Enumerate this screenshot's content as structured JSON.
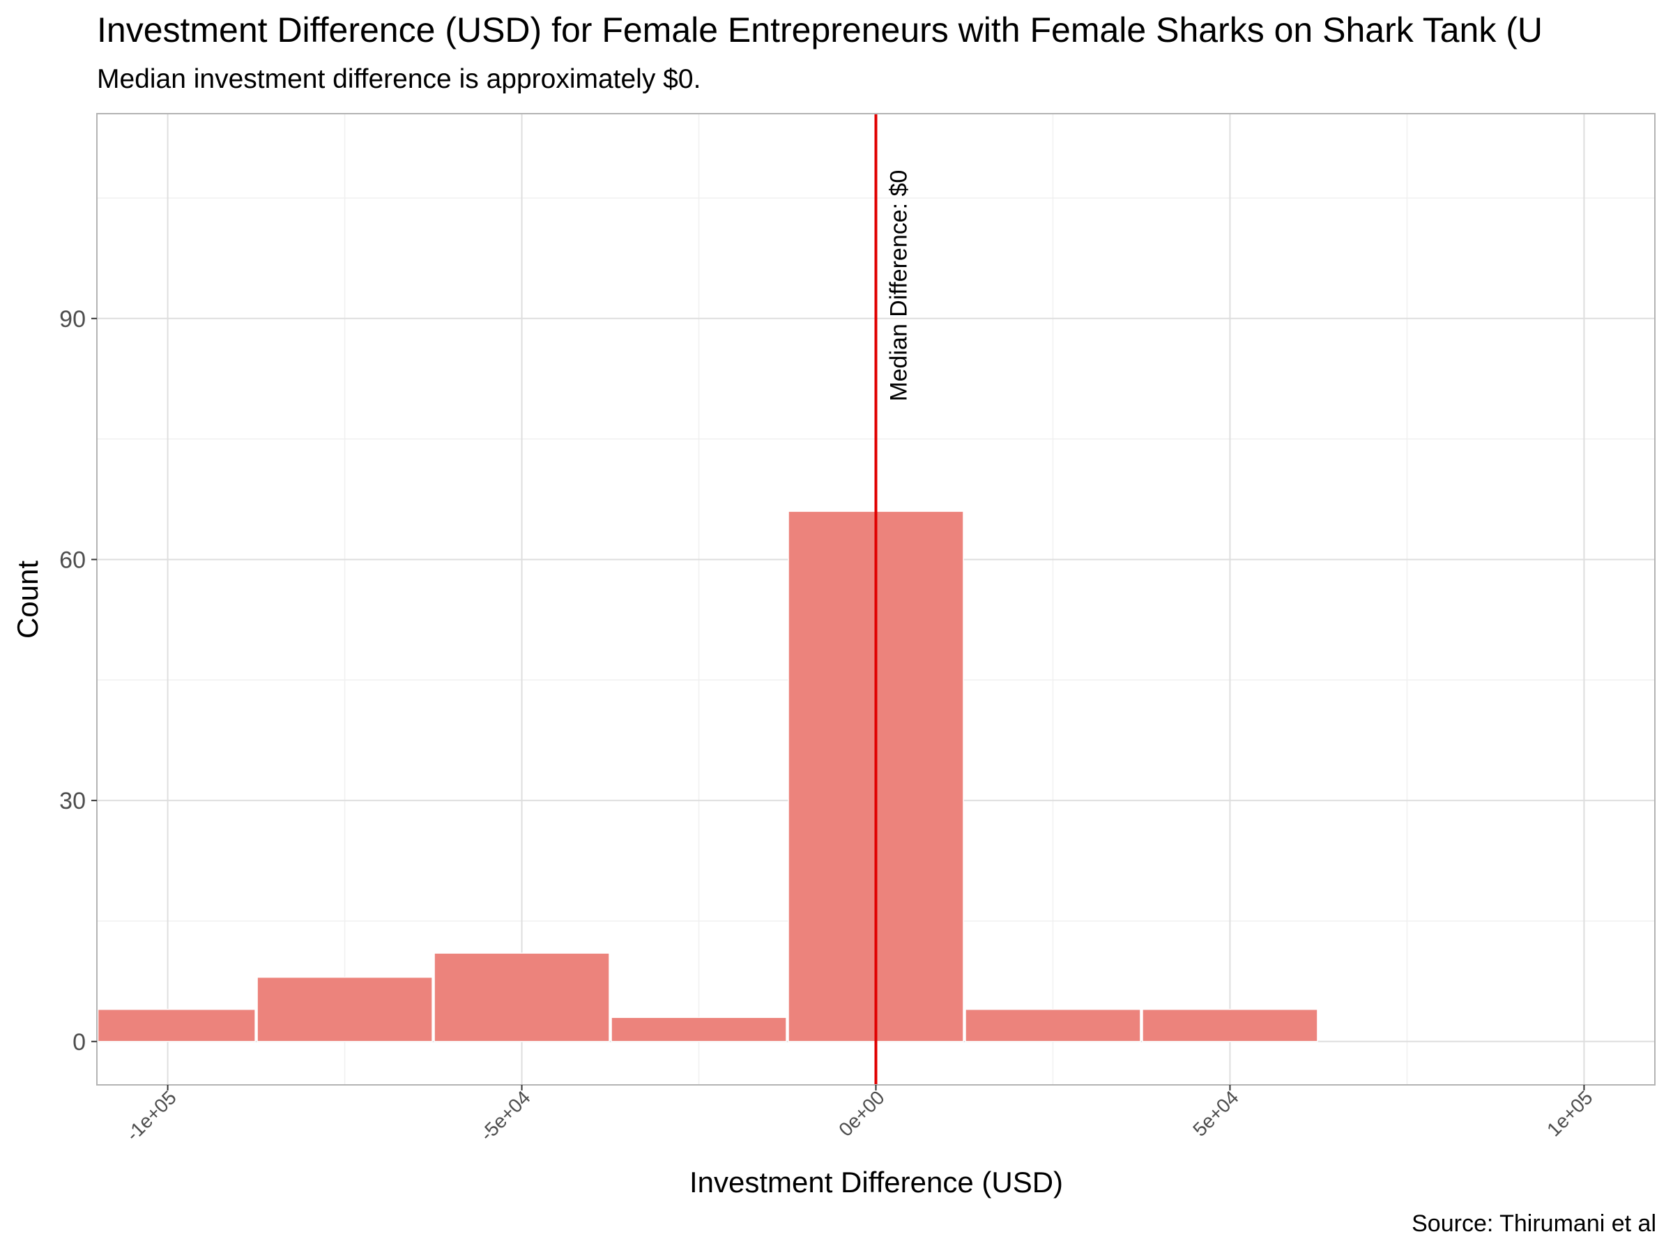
{
  "title": "Investment Difference (USD) for Female Entrepreneurs with Female Sharks on Shark Tank (U",
  "subtitle": "Median investment difference is approximately $0.",
  "caption": "Source: Thirumani et al",
  "chart_data": {
    "type": "bar",
    "title": "Investment Difference (USD) for Female Entrepreneurs with Female Sharks on Shark Tank (U",
    "subtitle": "Median investment difference is approximately $0.",
    "xlabel": "Investment Difference (USD)",
    "ylabel": "Count",
    "xlim": [
      -110000,
      110000
    ],
    "ylim": [
      -5.4,
      115.5
    ],
    "x_ticks": [
      -100000,
      -50000,
      0,
      50000,
      100000
    ],
    "x_tick_labels": [
      "-1e+05",
      "-5e+04",
      "0e+00",
      "5e+04",
      "1e+05"
    ],
    "y_ticks": [
      0,
      30,
      60,
      90
    ],
    "y_tick_labels": [
      "0",
      "30",
      "60",
      "90"
    ],
    "bin_width": 25000,
    "bins": [
      {
        "x_start": -112500,
        "x_end": -87500,
        "count": 4
      },
      {
        "x_start": -87500,
        "x_end": -62500,
        "count": 8
      },
      {
        "x_start": -62500,
        "x_end": -37500,
        "count": 11
      },
      {
        "x_start": -37500,
        "x_end": -12500,
        "count": 3
      },
      {
        "x_start": -12500,
        "x_end": 12500,
        "count": 66
      },
      {
        "x_start": 12500,
        "x_end": 37500,
        "count": 4
      },
      {
        "x_start": 37500,
        "x_end": 62500,
        "count": 4
      },
      {
        "x_start": 62500,
        "x_end": 87500,
        "count": 0
      },
      {
        "x_start": 87500,
        "x_end": 112500,
        "count": 0
      }
    ],
    "median_line": {
      "x": 0,
      "label": "Median Difference: $0",
      "color": "#e00000"
    },
    "bar_color": "#ec837c",
    "grid": true,
    "legend": "none"
  }
}
